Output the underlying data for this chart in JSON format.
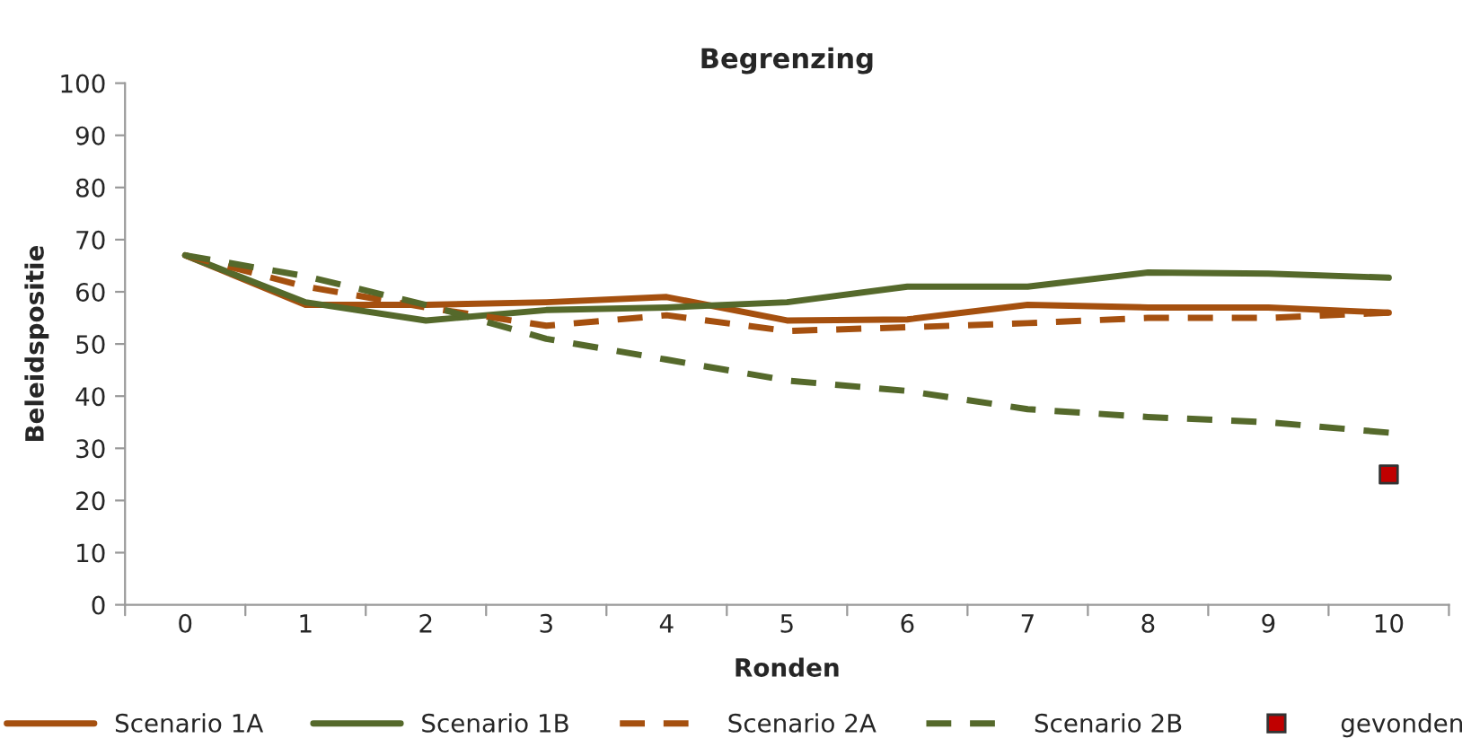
{
  "chart_data": {
    "type": "line",
    "title": "Begrenzing",
    "xlabel": "Ronden",
    "ylabel": "Beleidspositie",
    "categories": [
      "0",
      "1",
      "2",
      "3",
      "4",
      "5",
      "6",
      "7",
      "8",
      "9",
      "10"
    ],
    "ylim": [
      0,
      100
    ],
    "yticks": [
      0,
      10,
      20,
      30,
      40,
      50,
      60,
      70,
      80,
      90,
      100
    ],
    "grid": false,
    "legend": "bottom",
    "series": [
      {
        "name": "Scenario 1A",
        "color": "#a5500f",
        "line_style": "solid",
        "values": [
          67,
          57.5,
          57.5,
          58,
          59,
          54.5,
          54.7,
          57.5,
          57,
          57,
          56
        ]
      },
      {
        "name": "Scenario 1B",
        "color": "#55692b",
        "line_style": "solid",
        "values": [
          67,
          58,
          54.5,
          56.5,
          57,
          58,
          61,
          61,
          63.7,
          63.5,
          62.7
        ]
      },
      {
        "name": "Scenario 2A",
        "color": "#a5500f",
        "line_style": "dashed",
        "values": [
          67,
          61,
          57,
          53.5,
          55.5,
          52.5,
          53.2,
          54,
          55,
          55,
          56
        ]
      },
      {
        "name": "Scenario 2B",
        "color": "#55692b",
        "line_style": "dashed",
        "values": [
          67,
          63,
          57.5,
          51,
          47,
          43,
          41,
          37.5,
          36,
          35,
          33
        ]
      },
      {
        "name": "gevonden",
        "type": "scatter",
        "marker": "square",
        "color": "#c00000",
        "values": [
          null,
          null,
          null,
          null,
          null,
          null,
          null,
          null,
          null,
          null,
          25
        ]
      }
    ]
  }
}
